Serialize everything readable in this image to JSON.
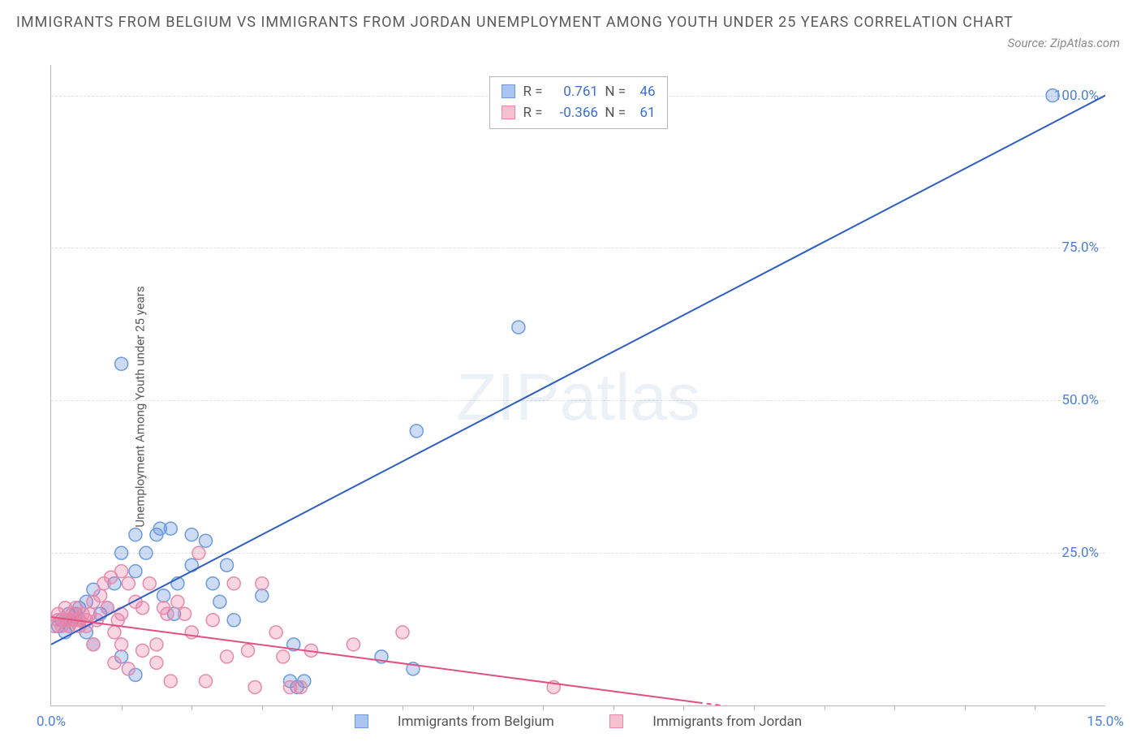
{
  "title": "IMMIGRANTS FROM BELGIUM VS IMMIGRANTS FROM JORDAN UNEMPLOYMENT AMONG YOUTH UNDER 25 YEARS CORRELATION CHART",
  "source": "Source: ZipAtlas.com",
  "y_axis_label": "Unemployment Among Youth under 25 years",
  "watermark_a": "ZIP",
  "watermark_b": "atlas",
  "chart": {
    "type": "scatter",
    "xlim": [
      0,
      15
    ],
    "ylim": [
      0,
      105
    ],
    "xtick_labels": {
      "0": "0.0%",
      "15": "15.0%"
    },
    "xtick_minor": [
      1,
      2,
      3,
      4,
      5,
      6,
      7,
      8,
      9,
      10,
      11,
      12,
      13,
      14
    ],
    "ytick_labels": {
      "25": "25.0%",
      "50": "50.0%",
      "75": "75.0%",
      "100": "100.0%"
    },
    "grid_y": [
      25,
      50,
      75,
      100
    ],
    "grid_color": "#e0e0e0",
    "background_color": "#ffffff",
    "marker_radius": 8,
    "marker_stroke_width": 1.5,
    "line_width": 2,
    "series": [
      {
        "name": "Immigrants from Belgium",
        "color_fill": "rgba(90,140,220,0.30)",
        "color_stroke": "#6a9be0",
        "swatch_fill": "#a9c5f0",
        "swatch_border": "#6a9be0",
        "R": "0.761",
        "N": "46",
        "trend": {
          "x1": 0,
          "y1": 10,
          "x2": 15,
          "y2": 100,
          "color": "#2e5fc0",
          "dash": null
        },
        "points": [
          [
            0.1,
            13
          ],
          [
            0.15,
            14
          ],
          [
            0.2,
            12
          ],
          [
            0.25,
            15
          ],
          [
            0.25,
            13
          ],
          [
            0.3,
            14
          ],
          [
            0.35,
            15
          ],
          [
            0.4,
            16
          ],
          [
            0.4,
            14
          ],
          [
            0.5,
            17
          ],
          [
            0.5,
            12
          ],
          [
            0.6,
            19
          ],
          [
            0.6,
            10
          ],
          [
            0.7,
            15
          ],
          [
            0.8,
            16
          ],
          [
            0.9,
            20
          ],
          [
            1.0,
            25
          ],
          [
            1.0,
            8
          ],
          [
            1.0,
            56
          ],
          [
            1.2,
            22
          ],
          [
            1.2,
            28
          ],
          [
            1.2,
            5
          ],
          [
            1.35,
            25
          ],
          [
            1.5,
            28
          ],
          [
            1.55,
            29
          ],
          [
            1.6,
            18
          ],
          [
            1.7,
            29
          ],
          [
            1.75,
            15
          ],
          [
            1.8,
            20
          ],
          [
            2.0,
            23
          ],
          [
            2.0,
            28
          ],
          [
            2.2,
            27
          ],
          [
            2.3,
            20
          ],
          [
            2.4,
            17
          ],
          [
            2.5,
            23
          ],
          [
            2.6,
            14
          ],
          [
            3.0,
            18
          ],
          [
            3.4,
            4
          ],
          [
            3.45,
            10
          ],
          [
            3.5,
            3
          ],
          [
            3.6,
            4
          ],
          [
            4.7,
            8
          ],
          [
            5.15,
            6
          ],
          [
            5.2,
            45
          ],
          [
            6.65,
            62
          ],
          [
            14.25,
            100
          ]
        ]
      },
      {
        "name": "Immigrants from Jordan",
        "color_fill": "rgba(235,120,160,0.30)",
        "color_stroke": "#e58aac",
        "swatch_fill": "#f5c0d0",
        "swatch_border": "#e58aac",
        "R": "-0.366",
        "N": "61",
        "trend": {
          "x1": 0,
          "y1": 14.5,
          "x2": 9.2,
          "y2": 0.5,
          "color": "#e05080",
          "dash": null
        },
        "trend_ext": {
          "x1": 9.2,
          "y1": 0.5,
          "x2": 11.5,
          "y2": -3,
          "color": "#e05080",
          "dash": "6,5"
        },
        "points": [
          [
            0.05,
            13
          ],
          [
            0.1,
            14
          ],
          [
            0.1,
            15
          ],
          [
            0.15,
            13
          ],
          [
            0.2,
            14
          ],
          [
            0.2,
            16
          ],
          [
            0.25,
            14
          ],
          [
            0.25,
            13
          ],
          [
            0.3,
            14
          ],
          [
            0.3,
            15
          ],
          [
            0.35,
            16
          ],
          [
            0.35,
            14
          ],
          [
            0.4,
            14
          ],
          [
            0.4,
            13
          ],
          [
            0.45,
            15
          ],
          [
            0.5,
            14
          ],
          [
            0.5,
            13
          ],
          [
            0.55,
            15
          ],
          [
            0.6,
            17
          ],
          [
            0.6,
            10
          ],
          [
            0.65,
            14
          ],
          [
            0.7,
            18
          ],
          [
            0.75,
            20
          ],
          [
            0.8,
            16
          ],
          [
            0.85,
            21
          ],
          [
            0.9,
            12
          ],
          [
            0.9,
            7
          ],
          [
            0.95,
            14
          ],
          [
            1.0,
            10
          ],
          [
            1.0,
            15
          ],
          [
            1.0,
            22
          ],
          [
            1.1,
            20
          ],
          [
            1.1,
            6
          ],
          [
            1.2,
            17
          ],
          [
            1.3,
            16
          ],
          [
            1.3,
            9
          ],
          [
            1.4,
            20
          ],
          [
            1.5,
            10
          ],
          [
            1.5,
            7
          ],
          [
            1.6,
            16
          ],
          [
            1.65,
            15
          ],
          [
            1.7,
            4
          ],
          [
            1.8,
            17
          ],
          [
            1.9,
            15
          ],
          [
            2.0,
            12
          ],
          [
            2.1,
            25
          ],
          [
            2.2,
            4
          ],
          [
            2.3,
            14
          ],
          [
            2.5,
            8
          ],
          [
            2.6,
            20
          ],
          [
            2.8,
            9
          ],
          [
            2.9,
            3
          ],
          [
            3.0,
            20
          ],
          [
            3.2,
            12
          ],
          [
            3.3,
            8
          ],
          [
            3.4,
            3
          ],
          [
            3.55,
            3
          ],
          [
            3.7,
            9
          ],
          [
            4.3,
            10
          ],
          [
            5.0,
            12
          ],
          [
            7.15,
            3
          ]
        ]
      }
    ]
  }
}
